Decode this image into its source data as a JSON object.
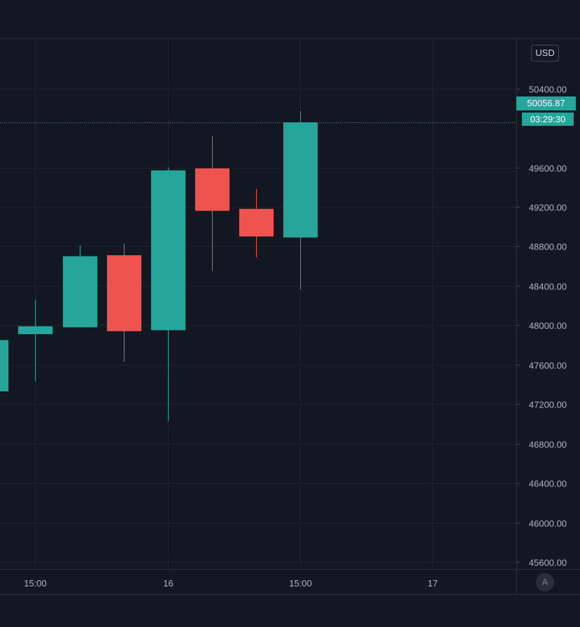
{
  "currency_label": "USD",
  "auto_scale_label": "A",
  "last_price_label": "50056.87",
  "countdown_label": "03:29:30",
  "colors": {
    "background": "#131722",
    "grid": "#1e222d",
    "up": "#26a69a",
    "down": "#ef5350",
    "text": "#b2b5be"
  },
  "chart_data": {
    "type": "candlestick",
    "y_axis_ticks": [
      "50400.00",
      "49600.00",
      "49200.00",
      "48800.00",
      "48400.00",
      "48000.00",
      "47600.00",
      "47200.00",
      "46800.00",
      "46400.00",
      "46000.00",
      "45600.00"
    ],
    "x_axis_ticks": [
      {
        "label": "15:00",
        "t": 2
      },
      {
        "label": "16",
        "t": 5
      },
      {
        "label": "15:00",
        "t": 8
      },
      {
        "label": "17",
        "t": 11
      }
    ],
    "ylim": [
      45530,
      50900
    ],
    "xlim": [
      1.2,
      12.9
    ],
    "grid": true,
    "last_price": 50056.87,
    "series": [
      {
        "t": 1,
        "open": 47330,
        "high": 47850,
        "low": 47330,
        "close": 47850
      },
      {
        "t": 2,
        "open": 47910,
        "high": 48260,
        "low": 47430,
        "close": 47990
      },
      {
        "t": 3,
        "open": 47980,
        "high": 48810,
        "low": 47980,
        "close": 48700
      },
      {
        "t": 4,
        "open": 48710,
        "high": 48830,
        "low": 47630,
        "close": 47940
      },
      {
        "t": 5,
        "open": 47950,
        "high": 49600,
        "low": 47030,
        "close": 49570
      },
      {
        "t": 6,
        "open": 49590,
        "high": 49920,
        "low": 48550,
        "close": 49160
      },
      {
        "t": 7,
        "open": 49180,
        "high": 49380,
        "low": 48690,
        "close": 48900
      },
      {
        "t": 8,
        "open": 48890,
        "high": 50170,
        "low": 48360,
        "close": 50056.87
      }
    ]
  }
}
